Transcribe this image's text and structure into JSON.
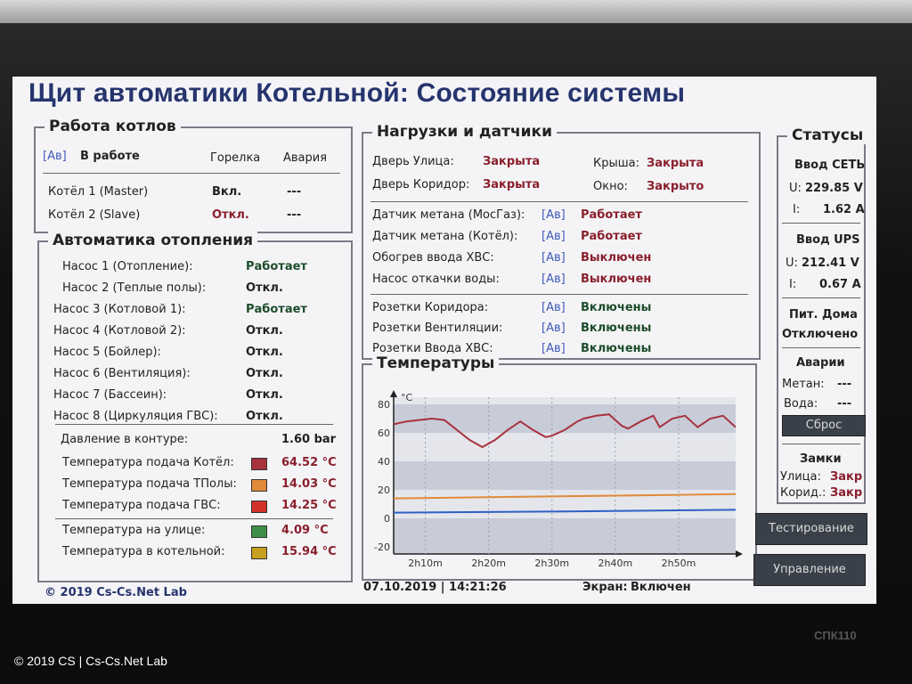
{
  "header": {
    "title": "Щит автоматики Котельной: Состояние системы"
  },
  "boilers": {
    "title": "Работа котлов",
    "mode_tag": "[Ав]",
    "mode_label": "В работе",
    "col_burner": "Горелка",
    "col_alarm": "Авария",
    "rows": [
      {
        "name": "Котёл 1 (Master)",
        "burner": "Вкл.",
        "alarm": "---"
      },
      {
        "name": "Котёл 2 (Slave)",
        "burner": "Откл.",
        "alarm": "---"
      }
    ]
  },
  "heating": {
    "title": "Автоматика отопления",
    "pumps": [
      {
        "name": "Насос 1 (Отопление):",
        "state": "Работает"
      },
      {
        "name": "Насос 2 (Теплые полы):",
        "state": "Откл."
      },
      {
        "name": "Насос 3 (Котловой 1):",
        "state": "Работает"
      },
      {
        "name": "Насос 4 (Котловой 2):",
        "state": "Откл."
      },
      {
        "name": "Насос 5 (Бойлер):",
        "state": "Откл."
      },
      {
        "name": "Насос 6 (Вентиляция):",
        "state": "Откл."
      },
      {
        "name": "Насос 7 (Бассеин):",
        "state": "Откл."
      },
      {
        "name": "Насос 8 (Циркуляция ГВС):",
        "state": "Откл."
      }
    ],
    "pressure_label": "Давление в контуре:",
    "pressure_value": "1.60 bar",
    "temps": [
      {
        "label": "Температура подача Котёл:",
        "value": "64.52 °C",
        "color": "#a8323e"
      },
      {
        "label": "Температура подача ТПолы:",
        "value": "14.03 °C",
        "color": "#e08a3a"
      },
      {
        "label": "Температура подача ГВС:",
        "value": "14.25 °C",
        "color": "#d0322a"
      },
      {
        "label": "Температура на улице:",
        "value": "4.09 °C",
        "color": "#3f8f4a"
      },
      {
        "label": "Температура в котельной:",
        "value": "15.94 °C",
        "color": "#c8a020"
      }
    ]
  },
  "loads": {
    "title": "Нагрузки и датчики",
    "doors": [
      {
        "label": "Дверь Улица:",
        "value": "Закрыта"
      },
      {
        "label": "Дверь Коридор:",
        "value": "Закрыта"
      }
    ],
    "roof_label": "Крыша:",
    "roof_value": "Закрыта",
    "window_label": "Окно:",
    "window_value": "Закрыто",
    "group1": [
      {
        "label": "Датчик метана (МосГаз):",
        "tag": "[Ав]",
        "value": "Работает"
      },
      {
        "label": "Датчик метана (Котёл):",
        "tag": "[Ав]",
        "value": "Работает"
      },
      {
        "label": "Обогрев ввода ХВС:",
        "tag": "[Ав]",
        "value": "Выключен"
      },
      {
        "label": "Насос откачки воды:",
        "tag": "[Ав]",
        "value": "Выключен"
      }
    ],
    "group2": [
      {
        "label": "Розетки Коридора:",
        "tag": "[Ав]",
        "value": "Включены"
      },
      {
        "label": "Розетки Вентиляции:",
        "tag": "[Ав]",
        "value": "Включены"
      },
      {
        "label": "Розетки Ввода ХВС:",
        "tag": "[Ав]",
        "value": "Включены"
      }
    ]
  },
  "temperatures_panel": {
    "title": "Температуры"
  },
  "chart_data": {
    "type": "line",
    "title": "Температуры",
    "ylabel": "°C",
    "ylim": [
      -25,
      85
    ],
    "yticks": [
      "80",
      "60",
      "40",
      "20",
      "0",
      "-20"
    ],
    "yticks_values": [
      80,
      60,
      40,
      20,
      0,
      -20
    ],
    "xlabels": [
      "2h10m",
      "2h20m",
      "2h30m",
      "2h40m",
      "2h50m"
    ],
    "xlabels_values": [
      10,
      20,
      30,
      40,
      50
    ],
    "xlim": [
      5,
      59
    ],
    "series": [
      {
        "name": "Котёл",
        "color": "#a8323e",
        "x": [
          5,
          7,
          9,
          11,
          13,
          15,
          17,
          19,
          21,
          23,
          25,
          27,
          29,
          30,
          32,
          34,
          35,
          37,
          39,
          41,
          42,
          44,
          46,
          47,
          49,
          51,
          53,
          55,
          57,
          59
        ],
        "y": [
          66,
          68,
          69,
          70,
          69,
          62,
          55,
          50,
          55,
          62,
          68,
          62,
          57,
          58,
          62,
          68,
          70,
          72,
          73,
          65,
          63,
          68,
          72,
          64,
          70,
          72,
          64,
          70,
          72,
          64
        ]
      },
      {
        "name": "ТПолы",
        "color": "#e08a3a",
        "x": [
          5,
          59
        ],
        "y": [
          14,
          17
        ]
      },
      {
        "name": "ГВС",
        "color": "#2f5fc4",
        "x": [
          5,
          36,
          59
        ],
        "y": [
          4,
          5,
          6
        ]
      }
    ]
  },
  "statuses": {
    "title": "Статусы",
    "grid_title": "Ввод СЕТЬ",
    "grid_u_label": "U:",
    "grid_u": "229.85 V",
    "grid_i_label": "I:",
    "grid_i": "1.62 A",
    "ups_title": "Ввод UPS",
    "ups_u_label": "U:",
    "ups_u": "212.41 V",
    "ups_i_label": "I:",
    "ups_i": "0.67 A",
    "house_title": "Пит. Дома",
    "house_value": "Отключено",
    "alarms_title": "Аварии",
    "methane_label": "Метан:",
    "methane_value": "---",
    "water_label": "Вода:",
    "water_value": "---",
    "reset_button": "Сброс",
    "locks_title": "Замки",
    "street_label": "Улица:",
    "street_value": "Закр",
    "corridor_label": "Корид.:",
    "corridor_value": "Закр"
  },
  "buttons": {
    "testing": "Тестирование",
    "control": "Управление"
  },
  "footer": {
    "copyright": "© 2019 Cs-Cs.Net Lab",
    "datetime": "07.10.2019 | 14:21:26",
    "screen_label": "Экран:",
    "screen_value": "Включен"
  },
  "photo": {
    "watermark": "© 2019 CS | Cs-Cs.Net Lab",
    "device": "СПК110"
  }
}
